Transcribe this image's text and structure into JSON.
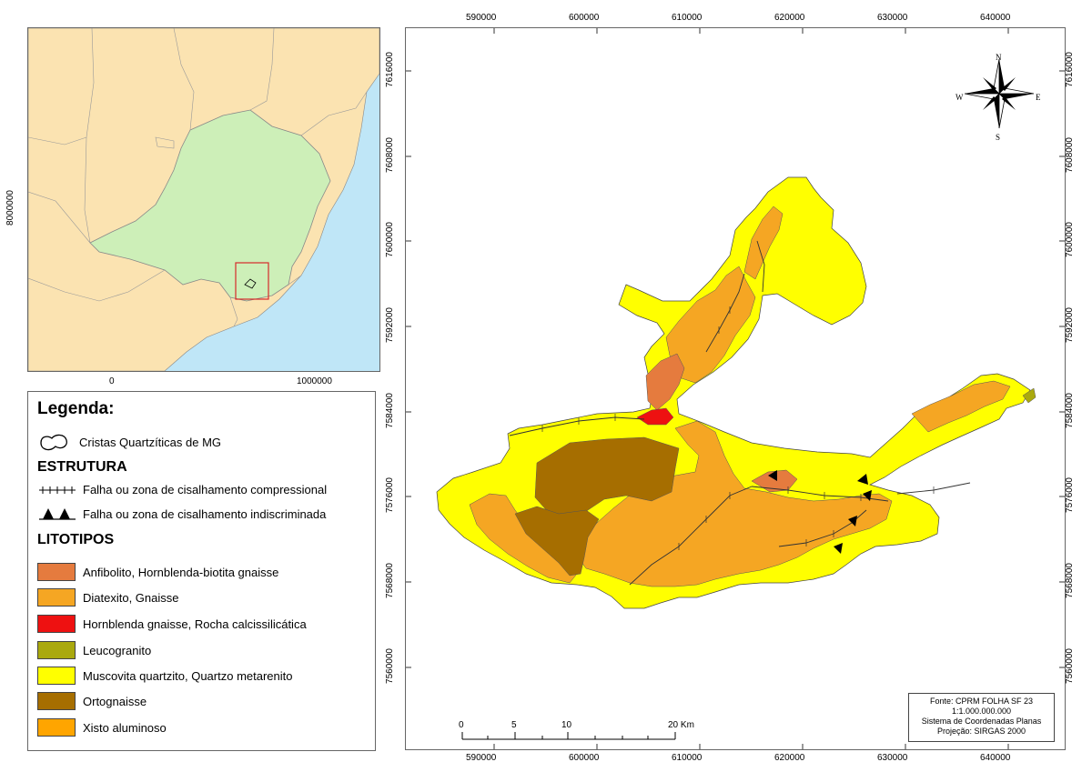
{
  "inset_map": {
    "x_ticks": [
      "0",
      "1000000"
    ],
    "y_ticks": [
      "8000000"
    ],
    "colors": {
      "ocean": "#bfe6f7",
      "land": "#fbe3b1",
      "state": "#cdefb8",
      "study_area_box": "#d62b2b"
    }
  },
  "legend": {
    "title": "Legenda:",
    "ridges_label": "Cristas Quartzíticas de MG",
    "structure_title": "ESTRUTURA",
    "structures": [
      {
        "label": "Falha ou zona de cisalhamento compressional",
        "icon": "tick-line-icon"
      },
      {
        "label": "Falha ou zona de cisalhamento indiscriminada",
        "icon": "triangle-line-icon"
      }
    ],
    "lithotypes_title": "LITOTIPOS",
    "lithotypes": [
      {
        "label": "Anfibolito, Hornblenda-biotita gnaisse",
        "color": "#e57b3e"
      },
      {
        "label": "Diatexito, Gnaisse",
        "color": "#f5a623"
      },
      {
        "label": "Hornblenda gnaisse, Rocha calcissilicática",
        "color": "#ee1111"
      },
      {
        "label": "Leucogranito",
        "color": "#aaa90e"
      },
      {
        "label": "Muscovita quartzito, Quartzo metarenito",
        "color": "#ffff00"
      },
      {
        "label": "Ortognaisse",
        "color": "#a66e00"
      },
      {
        "label": "Xisto aluminoso",
        "color": "#ffa500"
      }
    ]
  },
  "main_map": {
    "x_ticks": [
      "590000",
      "600000",
      "610000",
      "620000",
      "630000",
      "640000"
    ],
    "y_ticks": [
      "7616000",
      "7608000",
      "7600000",
      "7592000",
      "7584000",
      "7576000",
      "7568000",
      "7560000"
    ],
    "compass": {
      "n": "N",
      "s": "S",
      "e": "E",
      "w": "W"
    },
    "scale_bar": {
      "labels": [
        "0",
        "5",
        "10",
        "20 Km"
      ]
    },
    "info_box": {
      "source": "Fonte: CPRM FOLHA SF 23",
      "scale": "1:1.000.000.000",
      "system": "Sistema de Coordenadas Planas",
      "projection": "Projeção: SIRGAS 2000"
    }
  }
}
